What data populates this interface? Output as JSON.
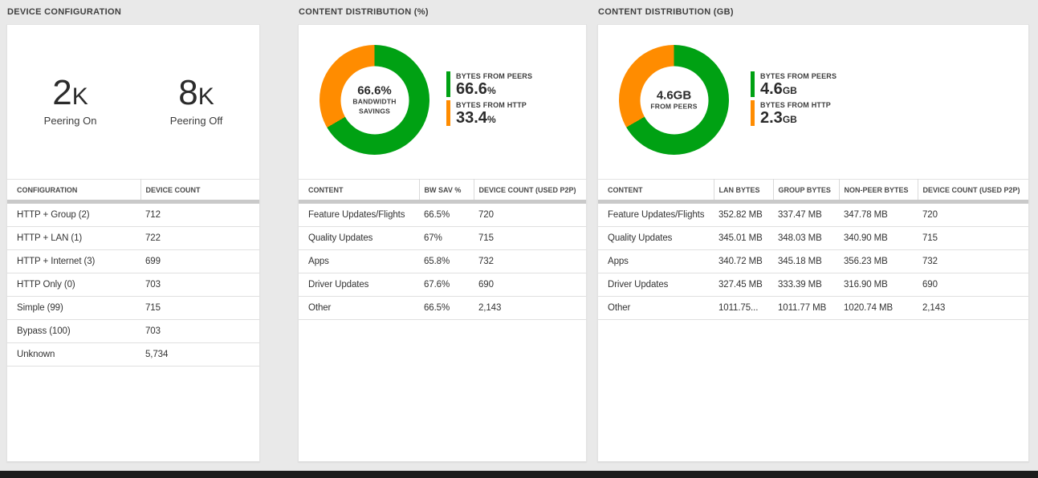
{
  "colors": {
    "green": "#00a113",
    "orange": "#ff8c00",
    "page_bg": "#e9e9e9",
    "taskbar": "#1c1c1c"
  },
  "panels": {
    "device_config": {
      "title": "DEVICE CONFIGURATION",
      "stats": [
        {
          "value": "2",
          "suffix": "K",
          "label": "Peering On"
        },
        {
          "value": "8",
          "suffix": "K",
          "label": "Peering Off"
        }
      ],
      "table": {
        "headers": [
          "CONFIGURATION",
          "DEVICE COUNT"
        ],
        "rows": [
          [
            "HTTP + Group (2)",
            "712"
          ],
          [
            "HTTP + LAN (1)",
            "722"
          ],
          [
            "HTTP + Internet (3)",
            "699"
          ],
          [
            "HTTP Only (0)",
            "703"
          ],
          [
            "Simple (99)",
            "715"
          ],
          [
            "Bypass (100)",
            "703"
          ],
          [
            "Unknown",
            "5,734"
          ]
        ]
      }
    },
    "dist_pct": {
      "title": "CONTENT DISTRIBUTION (%)",
      "donut": {
        "center_value": "66.6%",
        "center_sub": [
          "BANDWIDTH",
          "SAVINGS"
        ],
        "segments": [
          {
            "label": "BYTES FROM PEERS",
            "value": 66.6,
            "color": "#00a113"
          },
          {
            "label": "BYTES FROM HTTP",
            "value": 33.4,
            "color": "#ff8c00"
          }
        ]
      },
      "legend": [
        {
          "label": "BYTES FROM PEERS",
          "value": "66.6",
          "unit": "%",
          "color": "#00a113"
        },
        {
          "label": "BYTES FROM HTTP",
          "value": "33.4",
          "unit": "%",
          "color": "#ff8c00"
        }
      ],
      "table": {
        "headers": [
          "CONTENT",
          "BW SAV %",
          "DEVICE COUNT (USED P2P)"
        ],
        "rows": [
          [
            "Feature Updates/Flights",
            "66.5%",
            "720"
          ],
          [
            "Quality Updates",
            "67%",
            "715"
          ],
          [
            "Apps",
            "65.8%",
            "732"
          ],
          [
            "Driver Updates",
            "67.6%",
            "690"
          ],
          [
            "Other",
            "66.5%",
            "2,143"
          ]
        ]
      }
    },
    "dist_gb": {
      "title": "CONTENT DISTRIBUTION (GB)",
      "donut": {
        "center_value": "4.6GB",
        "center_sub": [
          "FROM PEERS"
        ],
        "segments": [
          {
            "label": "BYTES FROM PEERS",
            "value": 4.6,
            "color": "#00a113"
          },
          {
            "label": "BYTES FROM HTTP",
            "value": 2.3,
            "color": "#ff8c00"
          }
        ]
      },
      "legend": [
        {
          "label": "BYTES FROM PEERS",
          "value": "4.6",
          "unit": "GB",
          "color": "#00a113"
        },
        {
          "label": "BYTES FROM HTTP",
          "value": "2.3",
          "unit": "GB",
          "color": "#ff8c00"
        }
      ],
      "table": {
        "headers": [
          "CONTENT",
          "LAN BYTES",
          "GROUP BYTES",
          "NON-PEER BYTES",
          "DEVICE COUNT (USED P2P)"
        ],
        "rows": [
          [
            "Feature Updates/Flights",
            "352.82 MB",
            "337.47 MB",
            "347.78 MB",
            "720"
          ],
          [
            "Quality Updates",
            "345.01 MB",
            "348.03 MB",
            "340.90 MB",
            "715"
          ],
          [
            "Apps",
            "340.72 MB",
            "345.18 MB",
            "356.23 MB",
            "732"
          ],
          [
            "Driver Updates",
            "327.45 MB",
            "333.39 MB",
            "316.90 MB",
            "690"
          ],
          [
            "Other",
            "1011.75...",
            "1011.77 MB",
            "1020.74 MB",
            "2,143"
          ]
        ]
      }
    }
  },
  "chart_data": [
    {
      "type": "pie",
      "donut": true,
      "title": "CONTENT DISTRIBUTION (%)",
      "labels": [
        "BYTES FROM PEERS",
        "BYTES FROM HTTP"
      ],
      "values": [
        66.6,
        33.4
      ],
      "unit": "%",
      "colors": [
        "#00a113",
        "#ff8c00"
      ],
      "center_text": "66.6% BANDWIDTH SAVINGS",
      "legend_position": "right"
    },
    {
      "type": "pie",
      "donut": true,
      "title": "CONTENT DISTRIBUTION (GB)",
      "labels": [
        "BYTES FROM PEERS",
        "BYTES FROM HTTP"
      ],
      "values": [
        4.6,
        2.3
      ],
      "unit": "GB",
      "colors": [
        "#00a113",
        "#ff8c00"
      ],
      "center_text": "4.6GB FROM PEERS",
      "legend_position": "right"
    }
  ]
}
